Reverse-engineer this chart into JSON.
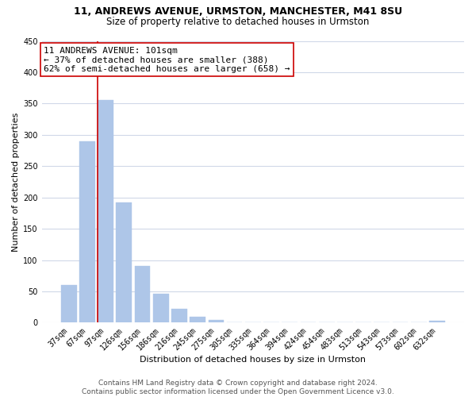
{
  "title1": "11, ANDREWS AVENUE, URMSTON, MANCHESTER, M41 8SU",
  "title2": "Size of property relative to detached houses in Urmston",
  "xlabel": "Distribution of detached houses by size in Urmston",
  "ylabel": "Number of detached properties",
  "footer1": "Contains HM Land Registry data © Crown copyright and database right 2024.",
  "footer2": "Contains public sector information licensed under the Open Government Licence v3.0.",
  "annotation_title": "11 ANDREWS AVENUE: 101sqm",
  "annotation_line1": "← 37% of detached houses are smaller (388)",
  "annotation_line2": "62% of semi-detached houses are larger (658) →",
  "bar_labels": [
    "37sqm",
    "67sqm",
    "97sqm",
    "126sqm",
    "156sqm",
    "186sqm",
    "216sqm",
    "245sqm",
    "275sqm",
    "305sqm",
    "335sqm",
    "364sqm",
    "394sqm",
    "424sqm",
    "454sqm",
    "483sqm",
    "513sqm",
    "543sqm",
    "573sqm",
    "602sqm",
    "632sqm"
  ],
  "bar_values": [
    60,
    290,
    355,
    192,
    91,
    46,
    22,
    9,
    5,
    0,
    0,
    0,
    0,
    0,
    0,
    0,
    0,
    0,
    0,
    0,
    3
  ],
  "bar_color": "#aec6e8",
  "bar_edge_color": "#aec6e8",
  "vline_color": "#cc0000",
  "vline_bar_index": 2,
  "ylim": [
    0,
    450
  ],
  "yticks": [
    0,
    50,
    100,
    150,
    200,
    250,
    300,
    350,
    400,
    450
  ],
  "bg_color": "#ffffff",
  "grid_color": "#d0d8e8",
  "annotation_box_color": "#ffffff",
  "annotation_box_edge": "#cc0000",
  "title1_fontsize": 9,
  "title2_fontsize": 8.5,
  "annot_fontsize": 8,
  "tick_fontsize": 7,
  "axis_label_fontsize": 8,
  "footer_fontsize": 6.5
}
